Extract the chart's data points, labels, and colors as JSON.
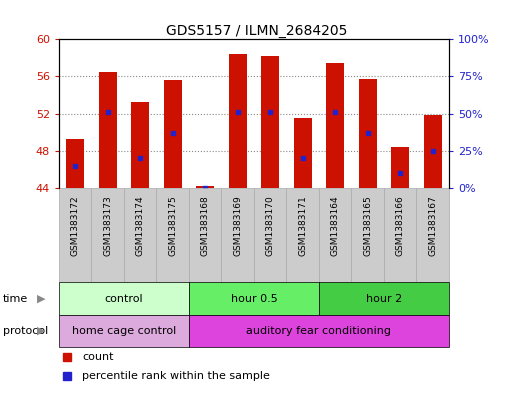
{
  "title": "GDS5157 / ILMN_2684205",
  "samples": [
    "GSM1383172",
    "GSM1383173",
    "GSM1383174",
    "GSM1383175",
    "GSM1383168",
    "GSM1383169",
    "GSM1383170",
    "GSM1383171",
    "GSM1383164",
    "GSM1383165",
    "GSM1383166",
    "GSM1383167"
  ],
  "count_values": [
    49.3,
    56.5,
    53.2,
    55.6,
    44.2,
    58.4,
    58.2,
    51.5,
    57.4,
    55.7,
    48.4,
    51.9
  ],
  "percentile_values": [
    15,
    51,
    20,
    37,
    0,
    51,
    51,
    20,
    51,
    37,
    10,
    25
  ],
  "ylim_left": [
    44,
    60
  ],
  "ylim_right": [
    0,
    100
  ],
  "yticks_left": [
    44,
    48,
    52,
    56,
    60
  ],
  "yticks_right": [
    0,
    25,
    50,
    75,
    100
  ],
  "bar_color": "#cc1100",
  "blue_color": "#2222cc",
  "grid_color": "#888888",
  "bg_color": "#ffffff",
  "cell_color": "#cccccc",
  "cell_edge_color": "#aaaaaa",
  "time_groups": [
    {
      "label": "control",
      "start": 0,
      "end": 4,
      "color": "#ccffcc"
    },
    {
      "label": "hour 0.5",
      "start": 4,
      "end": 8,
      "color": "#66ee66"
    },
    {
      "label": "hour 2",
      "start": 8,
      "end": 12,
      "color": "#44cc44"
    }
  ],
  "protocol_groups": [
    {
      "label": "home cage control",
      "start": 0,
      "end": 4,
      "color": "#ddaadd"
    },
    {
      "label": "auditory fear conditioning",
      "start": 4,
      "end": 12,
      "color": "#dd44dd"
    }
  ],
  "time_arrow_color": "#888888",
  "protocol_arrow_color": "#888888"
}
